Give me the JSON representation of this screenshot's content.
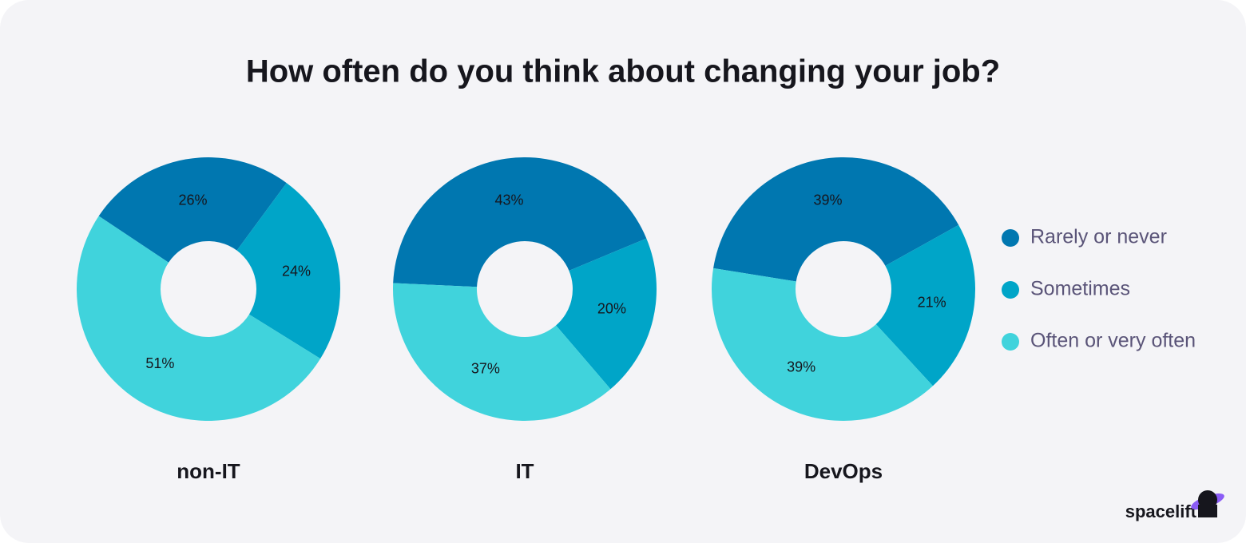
{
  "title": "How often do you think about changing your job?",
  "brand": "spacelift",
  "chart_data": [
    {
      "type": "pie",
      "title": "non-IT",
      "categories": [
        "Rarely or never",
        "Sometimes",
        "Often or very often"
      ],
      "values": [
        26,
        24,
        51
      ],
      "value_labels": [
        "26%",
        "24%",
        "51%"
      ],
      "colors": [
        "#0077b0",
        "#00a5c8",
        "#40d3dc"
      ]
    },
    {
      "type": "pie",
      "title": "IT",
      "categories": [
        "Rarely or never",
        "Sometimes",
        "Often or very often"
      ],
      "values": [
        43,
        20,
        37
      ],
      "value_labels": [
        "43%",
        "20%",
        "37%"
      ],
      "colors": [
        "#0077b0",
        "#00a5c8",
        "#40d3dc"
      ]
    },
    {
      "type": "pie",
      "title": "DevOps",
      "categories": [
        "Rarely or never",
        "Sometimes",
        "Often or very often"
      ],
      "values": [
        39,
        21,
        39
      ],
      "value_labels": [
        "39%",
        "21%",
        "39%"
      ],
      "colors": [
        "#0077b0",
        "#00a5c8",
        "#40d3dc"
      ]
    }
  ]
}
